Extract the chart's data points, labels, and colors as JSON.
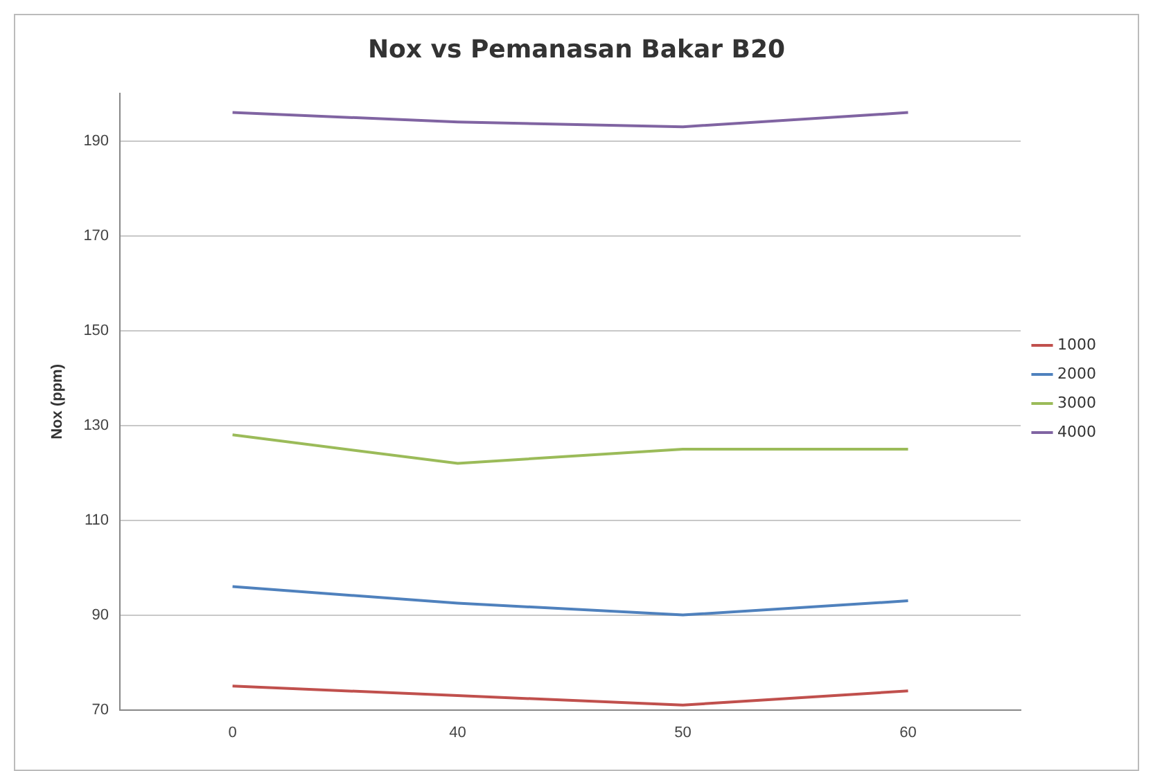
{
  "chart_data": {
    "type": "line",
    "title": "Nox vs Pemanasan Bakar B20",
    "ylabel": "Nox (ppm)",
    "categories": [
      "0",
      "40",
      "50",
      "60"
    ],
    "series": [
      {
        "name": "1000",
        "color": "#c0504d",
        "values": [
          75,
          73,
          71,
          74
        ]
      },
      {
        "name": "2000",
        "color": "#4f81bd",
        "values": [
          96,
          92.5,
          90,
          93
        ]
      },
      {
        "name": "3000",
        "color": "#9bbb59",
        "values": [
          128,
          122,
          125,
          125
        ]
      },
      {
        "name": "4000",
        "color": "#8064a2",
        "values": [
          196,
          194,
          193,
          196
        ]
      }
    ],
    "ylim": [
      70,
      200
    ],
    "yticks": [
      70,
      90,
      110,
      130,
      150,
      170,
      190
    ],
    "grid": "y",
    "legend": "right",
    "marker": "none",
    "line_style": "solid"
  }
}
